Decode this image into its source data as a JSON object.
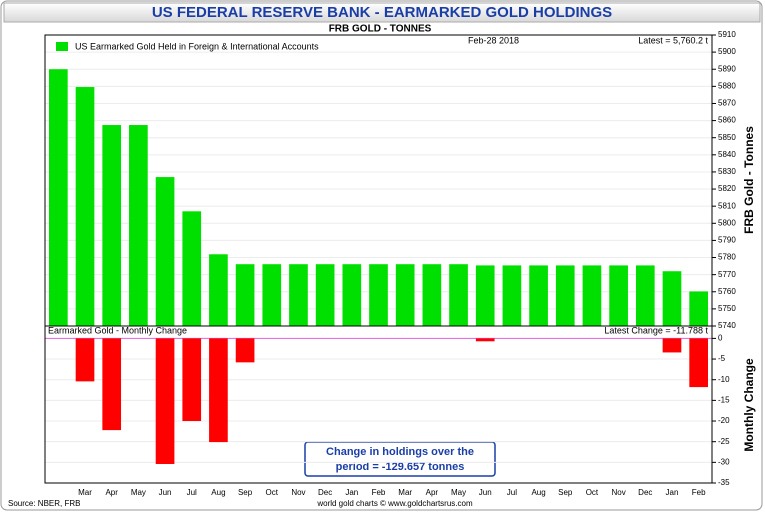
{
  "chart_data": [
    {
      "type": "bar",
      "title": "US FEDERAL RESERVE BANK - EARMARKED GOLD HOLDINGS",
      "subtitle": "FRB GOLD - TONNES",
      "date_label": "Feb-28  2018",
      "latest_label": "Latest = 5,760.2 t",
      "ylabel": "FRB Gold - Tonnes",
      "categories": [
        null,
        "Mar",
        "Apr",
        "May",
        "Jun",
        "Jul",
        "Aug",
        "Sep",
        "Oct",
        "Nov",
        "Dec",
        "Jan",
        "Feb",
        "Mar",
        "Apr",
        "May",
        "Jun",
        "Jul",
        "Aug",
        "Sep",
        "Oct",
        "Nov",
        "Dec",
        "Jan",
        "Feb"
      ],
      "series": [
        {
          "name": "US Earmarked Gold Held in Foreign & International Accounts",
          "color": "#00e000",
          "values": [
            5890,
            5879.6,
            5857.4,
            5857.4,
            5827,
            5807,
            5781.9,
            5776.1,
            5776.1,
            5776.1,
            5776.1,
            5776.1,
            5776.1,
            5776.1,
            5776.1,
            5776.1,
            5775.4,
            5775.4,
            5775.4,
            5775.4,
            5775.4,
            5775.4,
            5775.4,
            5772,
            5760.2
          ]
        }
      ],
      "ylim": [
        5740,
        5910
      ],
      "yticks": [
        5740,
        5750,
        5760,
        5770,
        5780,
        5790,
        5800,
        5810,
        5820,
        5830,
        5840,
        5850,
        5860,
        5870,
        5880,
        5890,
        5900,
        5910
      ],
      "grid": true
    },
    {
      "type": "bar",
      "panel_title": "Earmarked Gold - Monthly Change",
      "latest_label": "Latest Change = -11.788 t",
      "ylabel": "Monthly Change",
      "annotation": [
        "Change in holdings over the",
        "period = -129.657 tonnes"
      ],
      "source": "Source: NBER, FRB",
      "credit": "world gold charts © www.goldchartsrus.com",
      "series": [
        {
          "name": "Monthly Change",
          "color": "#ff0000",
          "values": [
            null,
            -10.4,
            -22.2,
            0,
            -30.4,
            -20,
            -25.1,
            -5.8,
            0,
            0,
            0,
            0,
            0,
            0,
            0,
            0,
            -0.7,
            0,
            0,
            0,
            0,
            0,
            0,
            -3.4,
            -11.788
          ]
        }
      ],
      "ylim": [
        -35,
        3
      ],
      "yticks": [
        0,
        -5,
        -10,
        -15,
        -20,
        -25,
        -30,
        -35
      ],
      "grid": true
    }
  ]
}
